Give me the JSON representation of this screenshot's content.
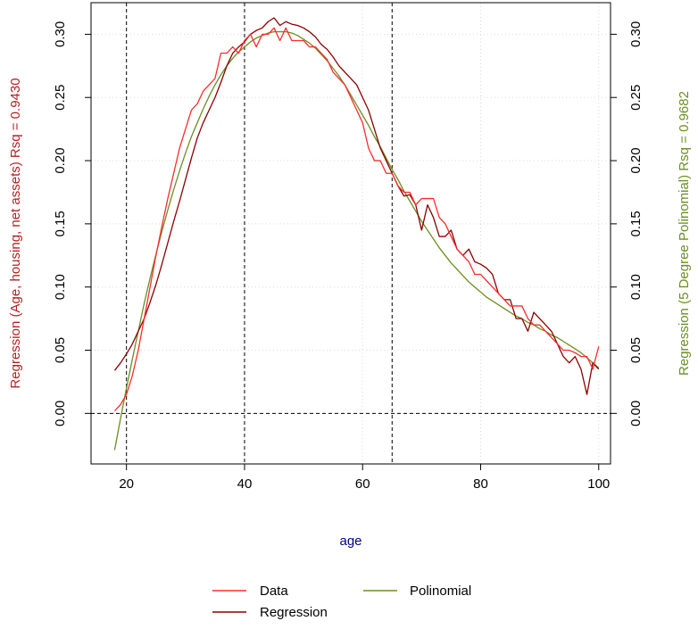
{
  "chart_data": {
    "type": "line",
    "xlabel": "age",
    "ylabel_left": "Regression (Age, housing, net assets) Rsq = 0.9430",
    "ylabel_right": "Regression (5 Degree Polinomial) Rsq = 0.9682",
    "xlim": [
      14,
      102
    ],
    "ylim": [
      -0.04,
      0.325
    ],
    "x_ticks": [
      20,
      40,
      60,
      80,
      100
    ],
    "y_ticks": [
      0.0,
      0.05,
      0.1,
      0.15,
      0.2,
      0.25,
      0.3
    ],
    "y_tick_labels": [
      "0.00",
      "0.05",
      "0.10",
      "0.15",
      "0.20",
      "0.25",
      "0.30"
    ],
    "grid": true,
    "vlines": [
      20,
      40,
      65
    ],
    "hlines": [
      0
    ],
    "legend": {
      "position": "bottom",
      "entries": [
        "Data",
        "Regression",
        "Polinomial"
      ]
    },
    "colors": {
      "data": "#ff2b2b",
      "regression": "#8b0000",
      "polinomial": "#6b8e23",
      "left_label": "#b22222",
      "right_label": "#6b8e23",
      "xlabel": "#00008b"
    },
    "series": [
      {
        "name": "Data",
        "x": [
          18,
          19,
          20,
          21,
          22,
          23,
          24,
          25,
          26,
          27,
          28,
          29,
          30,
          31,
          32,
          33,
          34,
          35,
          36,
          37,
          38,
          39,
          40,
          41,
          42,
          43,
          44,
          45,
          46,
          47,
          48,
          49,
          50,
          51,
          52,
          53,
          54,
          55,
          56,
          57,
          58,
          59,
          60,
          61,
          62,
          63,
          64,
          65,
          66,
          67,
          68,
          69,
          70,
          71,
          72,
          73,
          74,
          75,
          76,
          77,
          78,
          79,
          80,
          81,
          82,
          83,
          84,
          85,
          86,
          87,
          88,
          89,
          90,
          91,
          92,
          93,
          94,
          95,
          96,
          97,
          98,
          99,
          100
        ],
        "y": [
          0.002,
          0.007,
          0.015,
          0.03,
          0.05,
          0.075,
          0.1,
          0.125,
          0.148,
          0.17,
          0.19,
          0.21,
          0.225,
          0.24,
          0.245,
          0.255,
          0.26,
          0.265,
          0.285,
          0.285,
          0.29,
          0.285,
          0.295,
          0.3,
          0.29,
          0.3,
          0.3,
          0.305,
          0.295,
          0.305,
          0.295,
          0.295,
          0.295,
          0.29,
          0.29,
          0.285,
          0.28,
          0.27,
          0.265,
          0.26,
          0.25,
          0.24,
          0.23,
          0.21,
          0.2,
          0.2,
          0.19,
          0.19,
          0.18,
          0.175,
          0.175,
          0.165,
          0.17,
          0.17,
          0.17,
          0.155,
          0.15,
          0.14,
          0.13,
          0.125,
          0.12,
          0.11,
          0.11,
          0.105,
          0.1,
          0.095,
          0.09,
          0.085,
          0.085,
          0.085,
          0.075,
          0.07,
          0.07,
          0.065,
          0.06,
          0.055,
          0.05,
          0.05,
          0.048,
          0.045,
          0.045,
          0.035,
          0.053
        ]
      },
      {
        "name": "Regression",
        "x": [
          18,
          19,
          20,
          21,
          22,
          23,
          24,
          25,
          26,
          27,
          28,
          29,
          30,
          31,
          32,
          33,
          34,
          35,
          36,
          37,
          38,
          39,
          40,
          41,
          42,
          43,
          44,
          45,
          46,
          47,
          48,
          49,
          50,
          51,
          52,
          53,
          54,
          55,
          56,
          57,
          58,
          59,
          60,
          61,
          62,
          63,
          64,
          65,
          66,
          67,
          68,
          69,
          70,
          71,
          72,
          73,
          74,
          75,
          76,
          77,
          78,
          79,
          80,
          81,
          82,
          83,
          84,
          85,
          86,
          87,
          88,
          89,
          90,
          91,
          92,
          93,
          94,
          95,
          96,
          97,
          98,
          99,
          100
        ],
        "y": [
          0.034,
          0.04,
          0.047,
          0.055,
          0.065,
          0.075,
          0.088,
          0.102,
          0.118,
          0.135,
          0.152,
          0.168,
          0.185,
          0.202,
          0.218,
          0.23,
          0.24,
          0.25,
          0.262,
          0.275,
          0.285,
          0.29,
          0.294,
          0.3,
          0.303,
          0.305,
          0.31,
          0.313,
          0.307,
          0.31,
          0.308,
          0.307,
          0.305,
          0.302,
          0.298,
          0.292,
          0.288,
          0.282,
          0.275,
          0.27,
          0.265,
          0.26,
          0.25,
          0.24,
          0.225,
          0.21,
          0.2,
          0.19,
          0.18,
          0.172,
          0.173,
          0.165,
          0.145,
          0.165,
          0.155,
          0.14,
          0.14,
          0.145,
          0.13,
          0.125,
          0.13,
          0.12,
          0.118,
          0.115,
          0.11,
          0.095,
          0.09,
          0.09,
          0.075,
          0.075,
          0.065,
          0.08,
          0.075,
          0.07,
          0.065,
          0.055,
          0.045,
          0.04,
          0.045,
          0.035,
          0.015,
          0.04,
          0.035
        ]
      },
      {
        "name": "Polinomial",
        "x": [
          18,
          19,
          20,
          21,
          22,
          23,
          24,
          25,
          26,
          27,
          28,
          29,
          30,
          31,
          32,
          33,
          34,
          35,
          36,
          37,
          38,
          39,
          40,
          41,
          42,
          43,
          44,
          45,
          46,
          47,
          48,
          49,
          50,
          51,
          52,
          53,
          54,
          55,
          56,
          57,
          58,
          59,
          60,
          61,
          62,
          63,
          64,
          65,
          66,
          67,
          68,
          69,
          70,
          71,
          72,
          73,
          74,
          75,
          76,
          77,
          78,
          79,
          80,
          81,
          82,
          83,
          84,
          85,
          86,
          87,
          88,
          89,
          90,
          91,
          92,
          93,
          94,
          95,
          96,
          97,
          98,
          99,
          100
        ],
        "y": [
          -0.029,
          -0.004,
          0.02,
          0.043,
          0.065,
          0.087,
          0.107,
          0.126,
          0.144,
          0.161,
          0.177,
          0.192,
          0.206,
          0.219,
          0.23,
          0.241,
          0.251,
          0.26,
          0.268,
          0.275,
          0.281,
          0.286,
          0.29,
          0.294,
          0.297,
          0.299,
          0.301,
          0.302,
          0.302,
          0.302,
          0.301,
          0.299,
          0.296,
          0.293,
          0.289,
          0.284,
          0.279,
          0.273,
          0.267,
          0.26,
          0.252,
          0.244,
          0.236,
          0.228,
          0.219,
          0.211,
          0.202,
          0.193,
          0.185,
          0.176,
          0.168,
          0.16,
          0.152,
          0.145,
          0.138,
          0.131,
          0.125,
          0.119,
          0.114,
          0.109,
          0.104,
          0.1,
          0.096,
          0.092,
          0.089,
          0.086,
          0.083,
          0.08,
          0.077,
          0.075,
          0.072,
          0.07,
          0.067,
          0.065,
          0.062,
          0.06,
          0.057,
          0.054,
          0.051,
          0.048,
          0.044,
          0.04,
          0.036
        ]
      }
    ]
  }
}
